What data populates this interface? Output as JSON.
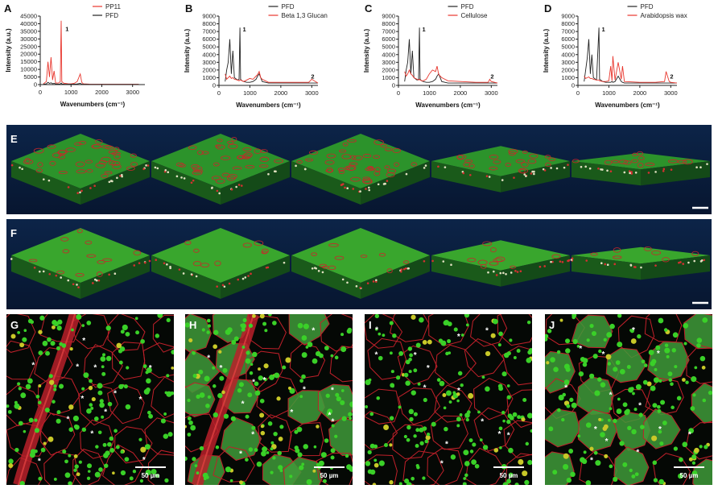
{
  "chart_data": [
    {
      "type": "line",
      "panel_label": "A",
      "ylabel": "Intensity (a.u.)",
      "xlabel": "Wavenumbers (cm⁻¹)",
      "x": [
        100,
        200,
        250,
        300,
        350,
        400,
        450,
        500,
        600,
        650,
        680,
        700,
        750,
        800,
        900,
        1000,
        1100,
        1200,
        1300,
        1350,
        1400,
        1600,
        2000,
        2500,
        3000,
        3200
      ],
      "series": [
        {
          "name": "PP11",
          "color": "#e8362d",
          "values": [
            500,
            2000,
            15000,
            5000,
            18000,
            3000,
            9000,
            1000,
            1000,
            2000,
            42000,
            2000,
            1000,
            800,
            600,
            500,
            800,
            2000,
            7000,
            1500,
            500,
            300,
            200,
            200,
            200,
            200
          ]
        },
        {
          "name": "PFD",
          "color": "#222222",
          "values": [
            200,
            500,
            1500,
            800,
            1200,
            600,
            800,
            400,
            300,
            400,
            1000,
            400,
            300,
            200,
            200,
            200,
            300,
            400,
            800,
            300,
            200,
            100,
            100,
            100,
            100,
            100
          ]
        }
      ],
      "xlim": [
        0,
        3400
      ],
      "xticks": [
        0,
        1000,
        2000,
        3000
      ],
      "ylim": [
        0,
        45000
      ],
      "yticks": [
        0,
        5000,
        10000,
        15000,
        20000,
        25000,
        30000,
        35000,
        40000,
        45000
      ],
      "legend": "upper right",
      "annotations": [
        "1"
      ]
    },
    {
      "type": "line",
      "panel_label": "B",
      "ylabel": "Intensity (a.u.)",
      "xlabel": "Wavenumbers (cm⁻¹)",
      "x": [
        200,
        250,
        300,
        350,
        400,
        450,
        500,
        600,
        650,
        680,
        700,
        750,
        800,
        900,
        1000,
        1100,
        1200,
        1250,
        1300,
        1350,
        1400,
        1500,
        1600,
        2000,
        2500,
        2900,
        2950,
        3000,
        3200
      ],
      "series": [
        {
          "name": "PFD",
          "color": "#222222",
          "values": [
            500,
            2000,
            3000,
            6000,
            1500,
            4500,
            1000,
            700,
            800,
            7500,
            800,
            600,
            500,
            400,
            400,
            500,
            800,
            1200,
            1500,
            1000,
            500,
            400,
            300,
            300,
            300,
            300,
            300,
            300,
            300
          ]
        },
        {
          "name": "Beta 1,3 Glucan",
          "color": "#e8362d",
          "values": [
            1500,
            800,
            1000,
            1200,
            900,
            1000,
            800,
            700,
            600,
            700,
            700,
            600,
            500,
            700,
            900,
            800,
            1200,
            1400,
            1800,
            1000,
            800,
            600,
            400,
            400,
            400,
            400,
            600,
            800,
            300
          ]
        }
      ],
      "xlim": [
        0,
        3200
      ],
      "xticks": [
        0,
        1000,
        2000,
        3000
      ],
      "ylim": [
        0,
        9000
      ],
      "yticks": [
        0,
        1000,
        2000,
        3000,
        4000,
        5000,
        6000,
        7000,
        8000,
        9000
      ],
      "legend": "upper right",
      "annotations": [
        "1",
        "2"
      ]
    },
    {
      "type": "line",
      "panel_label": "C",
      "ylabel": "Intensity (a.u.)",
      "xlabel": "Wavenumbers (cm⁻¹)",
      "x": [
        200,
        250,
        300,
        350,
        400,
        450,
        500,
        600,
        650,
        680,
        700,
        750,
        800,
        900,
        1000,
        1100,
        1200,
        1250,
        1300,
        1350,
        1400,
        1500,
        1600,
        2000,
        2500,
        2900,
        2950,
        3000,
        3200
      ],
      "series": [
        {
          "name": "PFD",
          "color": "#222222",
          "values": [
            500,
            2000,
            3000,
            6000,
            1500,
            4500,
            1000,
            700,
            800,
            7500,
            800,
            600,
            500,
            400,
            400,
            500,
            800,
            1200,
            1500,
            1000,
            500,
            400,
            300,
            300,
            300,
            300,
            300,
            300,
            300
          ]
        },
        {
          "name": "Cellulose",
          "color": "#e8362d",
          "values": [
            1800,
            1200,
            1500,
            2000,
            1500,
            1300,
            1000,
            800,
            700,
            800,
            700,
            600,
            600,
            800,
            1500,
            2000,
            1800,
            2500,
            1400,
            1200,
            1000,
            800,
            600,
            500,
            400,
            400,
            800,
            500,
            300
          ]
        }
      ],
      "xlim": [
        0,
        3200
      ],
      "xticks": [
        0,
        1000,
        2000,
        3000
      ],
      "ylim": [
        0,
        9000
      ],
      "yticks": [
        0,
        1000,
        2000,
        3000,
        4000,
        5000,
        6000,
        7000,
        8000,
        9000
      ],
      "legend": "upper right",
      "annotations": [
        "1",
        "2"
      ]
    },
    {
      "type": "line",
      "panel_label": "D",
      "ylabel": "Intensity (a.u.)",
      "xlabel": "Wavenumbers (cm⁻¹)",
      "x": [
        200,
        250,
        300,
        350,
        400,
        450,
        500,
        600,
        680,
        700,
        800,
        900,
        1000,
        1060,
        1100,
        1130,
        1200,
        1300,
        1400,
        1440,
        1500,
        2000,
        2500,
        2800,
        2850,
        2880,
        2950,
        3000,
        3200
      ],
      "series": [
        {
          "name": "PFD",
          "color": "#222222",
          "values": [
            500,
            2000,
            3500,
            6000,
            1500,
            4000,
            1000,
            700,
            7500,
            800,
            500,
            400,
            400,
            400,
            500,
            400,
            500,
            1200,
            500,
            400,
            300,
            300,
            300,
            300,
            300,
            300,
            300,
            300,
            300
          ]
        },
        {
          "name": "Arabidopsis wax",
          "color": "#e8362d",
          "values": [
            1200,
            900,
            1000,
            1100,
            900,
            900,
            800,
            700,
            700,
            600,
            500,
            500,
            600,
            2500,
            600,
            3800,
            700,
            3000,
            800,
            2500,
            500,
            400,
            400,
            500,
            1800,
            1400,
            500,
            400,
            300
          ]
        }
      ],
      "xlim": [
        0,
        3200
      ],
      "xticks": [
        0,
        1000,
        2000,
        3000
      ],
      "ylim": [
        0,
        9000
      ],
      "yticks": [
        0,
        1000,
        2000,
        3000,
        4000,
        5000,
        6000,
        7000,
        8000,
        9000
      ],
      "legend": "upper right",
      "annotations": [
        "1",
        "2"
      ]
    }
  ],
  "image_panels": [
    {
      "label": "E"
    },
    {
      "label": "F"
    }
  ],
  "micrographs": [
    {
      "label": "G",
      "scale_bar": "50 µm",
      "marker": "*"
    },
    {
      "label": "H",
      "scale_bar": "50 µm",
      "marker": "*"
    },
    {
      "label": "I",
      "scale_bar": "50 µm",
      "marker": "*"
    },
    {
      "label": "J",
      "scale_bar": "50 µm",
      "marker": "*"
    }
  ]
}
